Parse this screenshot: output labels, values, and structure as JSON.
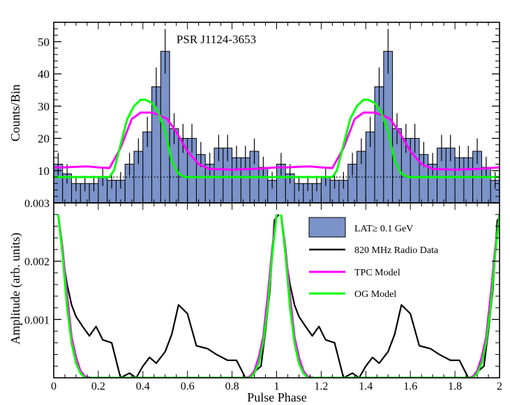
{
  "chart_data": [
    {
      "type": "bar",
      "panel": "top",
      "title": "PSR J1124-3653",
      "xlabel": "",
      "ylabel": "Counts/Bin",
      "xlim": [
        0,
        2
      ],
      "ylim": [
        0,
        56
      ],
      "grid": false,
      "bin_width": 0.04,
      "background_level": 8.0,
      "yticks": [
        10,
        20,
        30,
        40,
        50
      ],
      "ytick_labels": [
        "10",
        "20",
        "30",
        "40",
        "50"
      ],
      "lat_counts": [
        12,
        9,
        6,
        6,
        6,
        8,
        7,
        7,
        12,
        16,
        22,
        36,
        47,
        23,
        20,
        20,
        15,
        12,
        17,
        17,
        14,
        14,
        16,
        11,
        7
      ],
      "lat_errors": [
        3.5,
        3.0,
        2.4,
        2.4,
        2.4,
        2.8,
        2.6,
        2.6,
        3.5,
        4.0,
        4.7,
        6.0,
        6.9,
        4.8,
        4.5,
        4.5,
        3.9,
        3.5,
        4.1,
        4.1,
        3.7,
        3.7,
        4.0,
        3.3,
        2.6
      ],
      "series": [
        {
          "name": "TPC Model",
          "color": "#ff00ff",
          "x": [
            0.0,
            0.05,
            0.1,
            0.15,
            0.2,
            0.25,
            0.3,
            0.35,
            0.39,
            0.44,
            0.48,
            0.51,
            0.55,
            0.6,
            0.65,
            0.7,
            0.8,
            0.9,
            1.0
          ],
          "y": [
            11,
            11,
            11.2,
            11.3,
            11,
            10.8,
            17,
            26,
            28,
            28,
            27,
            26,
            22,
            16,
            12,
            10.5,
            10.3,
            10.5,
            11
          ]
        },
        {
          "name": "OG Model",
          "color": "#00ff00",
          "x": [
            0.0,
            0.05,
            0.1,
            0.15,
            0.2,
            0.25,
            0.27,
            0.3,
            0.33,
            0.36,
            0.39,
            0.41,
            0.44,
            0.47,
            0.5,
            0.53,
            0.56,
            0.59,
            0.62,
            0.7,
            0.8,
            0.9,
            1.0
          ],
          "y": [
            8,
            8,
            8,
            8,
            8,
            8,
            10,
            18,
            26,
            30,
            32,
            32,
            31,
            28,
            22,
            13,
            9,
            8,
            8,
            8,
            8,
            8,
            8
          ]
        }
      ]
    },
    {
      "type": "line",
      "panel": "bottom",
      "title": "",
      "xlabel": "Pulse Phase",
      "ylabel": "Amplitude (arb. units)",
      "xlim": [
        0,
        2
      ],
      "ylim": [
        0,
        0.003
      ],
      "grid": false,
      "xticks": [
        0,
        0.2,
        0.4,
        0.6,
        0.8,
        1,
        1.2,
        1.4,
        1.6,
        1.8,
        2
      ],
      "xtick_labels": [
        "0",
        "0.2",
        "0.4",
        "0.6",
        "0.8",
        "1",
        "1.2",
        "1.4",
        "1.6",
        "1.8",
        "2"
      ],
      "yticks": [
        0.001,
        0.002,
        0.003
      ],
      "ytick_labels": [
        "0.001",
        "0.002",
        "0.003"
      ],
      "legend_position": "top-right",
      "series": [
        {
          "name": "820 MHz Radio Data",
          "color": "#000000",
          "x": [
            0.02,
            0.04,
            0.06,
            0.08,
            0.1,
            0.13,
            0.16,
            0.19,
            0.22,
            0.26,
            0.3,
            0.34,
            0.37,
            0.4,
            0.43,
            0.46,
            0.5,
            0.53,
            0.56,
            0.6,
            0.64,
            0.69,
            0.73,
            0.78,
            0.82,
            0.86,
            0.88,
            0.9,
            0.93,
            0.95,
            0.97,
            0.99,
            1.01
          ],
          "y": [
            0.0028,
            0.0021,
            0.0016,
            0.00125,
            0.00105,
            0.00088,
            0.00072,
            0.00088,
            0.00065,
            0.0006,
            0.0,
            8e-05,
            0.0,
            0.0002,
            0.00035,
            0.00025,
            0.00045,
            0.00075,
            0.00125,
            0.0011,
            0.00055,
            0.0005,
            0.0004,
            0.0003,
            0.0003,
            0.0,
            0.0,
            0.0001,
            0.0002,
            0.0008,
            0.0015,
            0.0027,
            0.0028
          ]
        },
        {
          "name": "TPC Model",
          "color": "#ff00ff",
          "x": [
            0.02,
            0.04,
            0.06,
            0.08,
            0.1,
            0.12,
            0.14,
            0.17,
            0.2,
            0.86,
            0.88,
            0.9,
            0.92,
            0.94,
            0.96,
            0.98,
            1.0
          ],
          "y": [
            0.0028,
            0.0022,
            0.0014,
            0.0007,
            0.00035,
            0.00012,
            2e-05,
            0.0,
            0.0,
            0.0,
            2e-05,
            0.00012,
            0.00035,
            0.0007,
            0.0014,
            0.0022,
            0.0028
          ]
        },
        {
          "name": "OG Model",
          "color": "#00ff00",
          "x": [
            0.02,
            0.04,
            0.06,
            0.08,
            0.1,
            0.12,
            0.14,
            0.16,
            0.2,
            0.86,
            0.88,
            0.9,
            0.92,
            0.94,
            0.96,
            0.98,
            1.0
          ],
          "y": [
            0.0028,
            0.0021,
            0.0012,
            0.0006,
            0.00025,
            8e-05,
            0.0,
            0.0,
            0.0,
            0.0,
            0.0,
            8e-05,
            0.00025,
            0.0006,
            0.0012,
            0.0021,
            0.0028
          ]
        }
      ],
      "legend": [
        {
          "label": "LAT≥ 0.1 GeV",
          "color": "#7b93c9",
          "kind": "box"
        },
        {
          "label": "820 MHz Radio Data",
          "color": "#000000",
          "kind": "line"
        },
        {
          "label": "TPC Model",
          "color": "#ff00ff",
          "kind": "line"
        },
        {
          "label": "OG Model",
          "color": "#00ff00",
          "kind": "line"
        }
      ]
    }
  ]
}
